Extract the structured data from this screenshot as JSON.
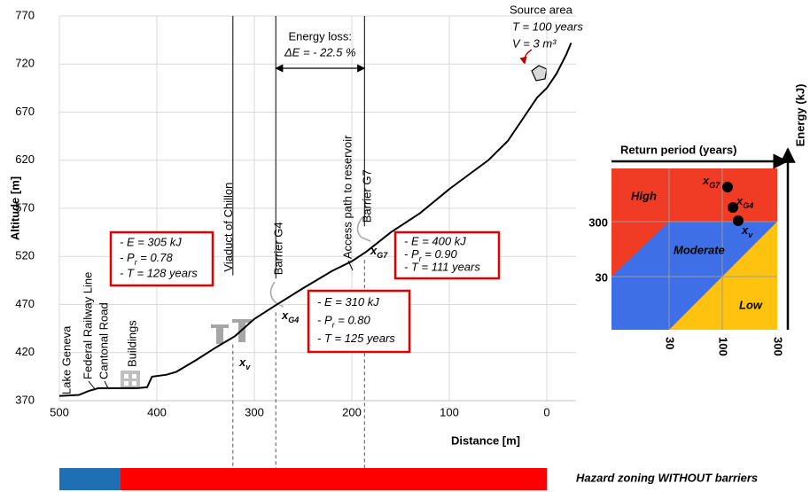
{
  "chart_data": {
    "type": "line",
    "x_label": "Distance  [m]",
    "y_label": "Altitude  [m]",
    "xlim": [
      500,
      -30
    ],
    "ylim": [
      370,
      770
    ],
    "xticks": [
      500,
      400,
      300,
      200,
      100,
      0
    ],
    "yticks": [
      370,
      420,
      470,
      520,
      570,
      620,
      670,
      720,
      770
    ],
    "grid": true,
    "color": "#000000",
    "x": [
      500,
      480,
      470,
      460,
      420,
      410,
      405,
      390,
      380,
      360,
      340,
      320,
      300,
      280,
      250,
      220,
      200,
      185,
      160,
      130,
      100,
      80,
      60,
      40,
      30,
      20,
      10,
      0,
      -10,
      -20,
      -25
    ],
    "values": [
      375,
      376,
      380,
      383,
      383,
      384,
      395,
      397,
      400,
      412,
      425,
      437,
      455,
      468,
      487,
      505,
      515,
      525,
      545,
      565,
      590,
      605,
      620,
      640,
      655,
      670,
      685,
      695,
      710,
      730,
      742
    ],
    "markers": [
      {
        "label": "Viaduct of Chillon",
        "x": 322
      },
      {
        "label": "Barrier G4",
        "x": 278
      },
      {
        "label": "Barrier G7",
        "x": 187
      }
    ],
    "place_labels": [
      {
        "text": "Lake Geneva",
        "color": "#5b9bd5"
      },
      {
        "text": "Federal Railway Line",
        "color": "#000000"
      },
      {
        "text": "Cantonal Road",
        "color": "#000000"
      },
      {
        "text": "Buildings",
        "color": "#000000"
      },
      {
        "text": "Access path to reservoir",
        "color": "#000000"
      }
    ],
    "energy_loss": {
      "title": "Energy loss:",
      "text": "ΔE = - 22.5 %"
    },
    "source_area": {
      "title": "Source area",
      "lines": [
        "T = 100 years",
        "V = 3 m³"
      ]
    },
    "point_labels": [
      [
        "x",
        {
          "sub": "v"
        }
      ],
      [
        "x",
        {
          "sub": "G4"
        }
      ],
      [
        "x",
        {
          "sub": "G7"
        }
      ]
    ],
    "info_boxes": [
      [
        [
          "- E = 305 kJ"
        ],
        [
          "- P",
          {
            "sub": "r"
          },
          " = 0.78"
        ],
        [
          "- T = 128 years"
        ]
      ],
      [
        [
          "- E = 310 kJ"
        ],
        [
          "- P",
          {
            "sub": "r"
          },
          " = 0.80"
        ],
        [
          "- T = 125 years"
        ]
      ],
      [
        [
          "- E = 400 kJ"
        ],
        [
          "- P",
          {
            "sub": "r"
          },
          " = 0.90"
        ],
        [
          "- T = 111 years"
        ]
      ]
    ],
    "hazard_zoning": {
      "label": "Hazard zoning WITHOUT barriers",
      "segments": [
        {
          "from": 500,
          "to": 438,
          "color": "#1f6fb4"
        },
        {
          "from": 438,
          "to": 0,
          "color": "#ff0000"
        }
      ]
    }
  },
  "risk_matrix": {
    "x_title": "Return period (years)",
    "y_title": "Energy (kJ)",
    "xticks": [
      30,
      100,
      300
    ],
    "yticks": [
      300,
      30
    ],
    "zones": [
      {
        "label": "High",
        "color": "#f03c24"
      },
      {
        "label": "Moderate",
        "color": "#3f6fe6"
      },
      {
        "label": "Low",
        "color": "#ffc20e"
      }
    ],
    "points": [
      [
        "x",
        {
          "sub": "G7"
        }
      ],
      [
        "x",
        {
          "sub": "G4"
        }
      ],
      [
        "x",
        {
          "sub": "v"
        }
      ]
    ]
  }
}
